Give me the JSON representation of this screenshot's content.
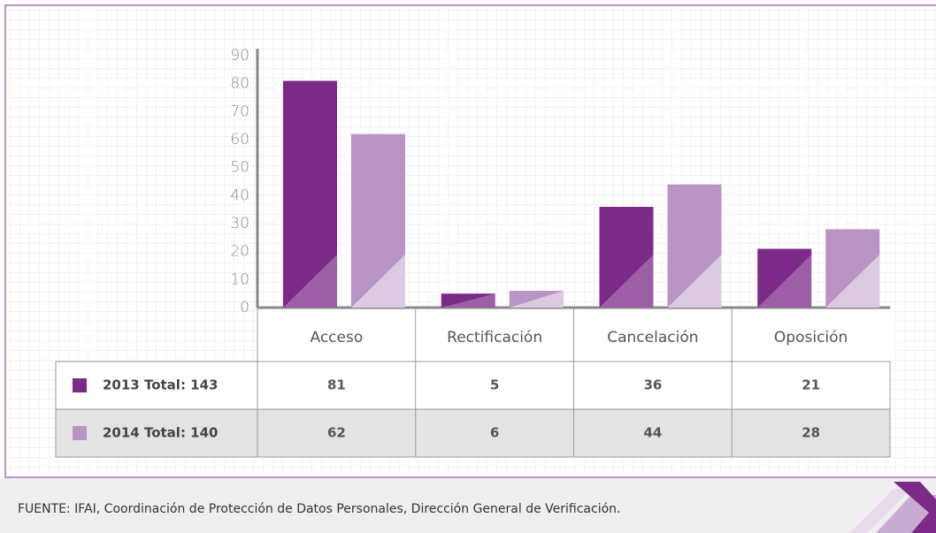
{
  "chart_data": {
    "type": "bar",
    "categories": [
      "Acceso",
      "Rectificación",
      "Cancelación",
      "Oposición"
    ],
    "series": [
      {
        "name": "2013 Total: 143",
        "color": "#7b2a87",
        "values": [
          81,
          5,
          36,
          21
        ]
      },
      {
        "name": "2014 Total: 140",
        "color": "#b994c4",
        "values": [
          62,
          6,
          44,
          28
        ]
      }
    ],
    "ylim": [
      0,
      90
    ],
    "yticks": [
      0,
      10,
      20,
      30,
      40,
      50,
      60,
      70,
      80,
      90
    ],
    "grid": true,
    "source": "FUENTE:  IFAI, Coordinación de Protección de Datos Personales, Dirección General de Verificación."
  }
}
